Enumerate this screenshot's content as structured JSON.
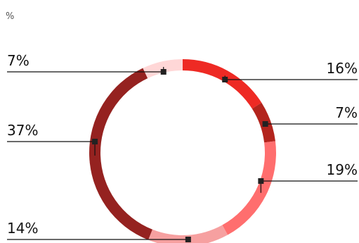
{
  "chart_data": {
    "type": "pie",
    "donut": true,
    "unit_label": "%",
    "start_angle_deg": 0,
    "direction": "clockwise",
    "slices": [
      {
        "value": 16,
        "label": "16%",
        "color": "#EE2A24",
        "side": "right"
      },
      {
        "value": 7,
        "label": "7%",
        "color": "#B3241D",
        "side": "right"
      },
      {
        "value": 19,
        "label": "19%",
        "color": "#FF6E6E",
        "side": "right"
      },
      {
        "value": 14,
        "label": "14%",
        "color": "#F6A0A0",
        "side": "left"
      },
      {
        "value": 37,
        "label": "37%",
        "color": "#952220",
        "side": "left"
      },
      {
        "value": 7,
        "label": "7%",
        "color": "#FFD7D7",
        "side": "left"
      }
    ]
  }
}
